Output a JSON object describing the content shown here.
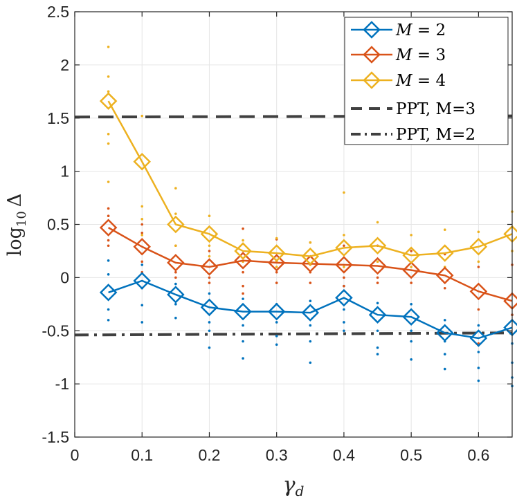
{
  "chart_data": {
    "type": "line",
    "xlabel": "γ",
    "xlabel_sub": "d",
    "ylabel": "log",
    "ylabel_sub": "10",
    "ylabel_symbol": "Δ",
    "xlim": [
      0,
      0.65
    ],
    "ylim": [
      -1.5,
      2.5
    ],
    "grid": true,
    "legend_position": "top-right",
    "x_ticks": [
      0,
      0.1,
      0.2,
      0.3,
      0.4,
      0.5,
      0.6
    ],
    "x_tick_labels": [
      "0",
      "0.1",
      "0.2",
      "0.3",
      "0.4",
      "0.5",
      "0.6"
    ],
    "y_ticks": [
      -1.5,
      -1,
      -0.5,
      0,
      0.5,
      1,
      1.5,
      2,
      2.5
    ],
    "y_tick_labels": [
      "-1.5",
      "-1",
      "-0.5",
      "0",
      "0.5",
      "1",
      "1.5",
      "2",
      "2.5"
    ],
    "x": [
      0.05,
      0.1,
      0.15,
      0.2,
      0.25,
      0.3,
      0.35,
      0.4,
      0.45,
      0.5,
      0.55,
      0.6,
      0.65
    ],
    "series": [
      {
        "name": "M = 2",
        "legend_prefix": "M",
        "legend_suffix": " = 2",
        "color": "#0072BD",
        "marker": "diamond",
        "values": [
          -0.14,
          -0.03,
          -0.16,
          -0.28,
          -0.32,
          -0.32,
          -0.33,
          -0.19,
          -0.35,
          -0.37,
          -0.52,
          -0.57,
          -0.47
        ],
        "scatter": [
          [
            0.16,
            0.03,
            -0.3,
            -0.4
          ],
          [
            0.12,
            -0.1,
            -0.26,
            -0.42
          ],
          [
            -0.06,
            -0.25,
            -0.38
          ],
          [
            -0.15,
            -0.42,
            -0.5,
            -0.66
          ],
          [
            -0.2,
            -0.45,
            -0.6,
            -0.76
          ],
          [
            -0.25,
            -0.42,
            -0.55,
            -0.63
          ],
          [
            -0.22,
            -0.45,
            -0.6,
            -0.8
          ],
          [
            -0.08,
            -0.3,
            -0.42,
            -0.5
          ],
          [
            -0.24,
            -0.5,
            -0.66,
            -0.72
          ],
          [
            -0.25,
            -0.5,
            -0.6,
            -0.77
          ],
          [
            -0.4,
            -0.6,
            -0.72,
            -0.86
          ],
          [
            -0.45,
            -0.7,
            -0.85,
            -0.97
          ],
          [
            -0.35,
            -0.62,
            -0.8,
            -0.94,
            -1.02
          ]
        ]
      },
      {
        "name": "M = 3",
        "legend_prefix": "M",
        "legend_suffix": " = 3",
        "color": "#D95319",
        "marker": "diamond",
        "values": [
          0.47,
          0.29,
          0.14,
          0.1,
          0.16,
          0.14,
          0.13,
          0.12,
          0.11,
          0.07,
          0.02,
          -0.13,
          -0.22
        ],
        "scatter": [
          [
            0.65,
            0.58,
            0.35,
            0.3
          ],
          [
            0.5,
            0.42,
            0.15,
            0.05
          ],
          [
            0.3,
            0.05,
            0.0
          ],
          [
            0.25,
            0.0,
            -0.05
          ],
          [
            0.46,
            0.05,
            -0.08,
            -0.15
          ],
          [
            0.36,
            0.05,
            -0.05
          ],
          [
            0.33,
            0.05,
            -0.05
          ],
          [
            0.3,
            0.0,
            -0.08
          ],
          [
            0.3,
            0.0,
            -0.05
          ],
          [
            0.25,
            -0.05
          ],
          [
            0.22,
            -0.1
          ],
          [
            0.1,
            -0.3,
            -0.62
          ],
          [
            0.12,
            -0.35
          ]
        ]
      },
      {
        "name": "M = 4",
        "legend_prefix": "M",
        "legend_suffix": " = 4",
        "color": "#EDB120",
        "marker": "diamond",
        "values": [
          1.66,
          1.09,
          0.5,
          0.41,
          0.25,
          0.23,
          0.2,
          0.28,
          0.3,
          0.21,
          0.23,
          0.29,
          0.41
        ],
        "scatter": [
          [
            2.17,
            1.89,
            1.75,
            1.35,
            1.26,
            0.9
          ],
          [
            1.52,
            0.67,
            0.55,
            0.4
          ],
          [
            0.84,
            0.6,
            0.3
          ],
          [
            0.58,
            0.3,
            0.2
          ],
          [
            0.35,
            0.15
          ],
          [
            0.37,
            0.15,
            0.1
          ],
          [
            0.33,
            0.12
          ],
          [
            0.8,
            0.4,
            0.1
          ],
          [
            0.52,
            0.15
          ],
          [
            0.4,
            0.1
          ],
          [
            0.45,
            0.1
          ],
          [
            0.43,
            0.15
          ],
          [
            0.62,
            0.25
          ]
        ]
      }
    ],
    "reference_lines": [
      {
        "name": "PPT, M=3",
        "style": "dashed",
        "color": "#404040",
        "y": [
          1.51,
          1.52
        ]
      },
      {
        "name": "PPT, M=2",
        "style": "dashdot",
        "color": "#404040",
        "y": [
          -0.54,
          -0.52
        ]
      }
    ]
  }
}
